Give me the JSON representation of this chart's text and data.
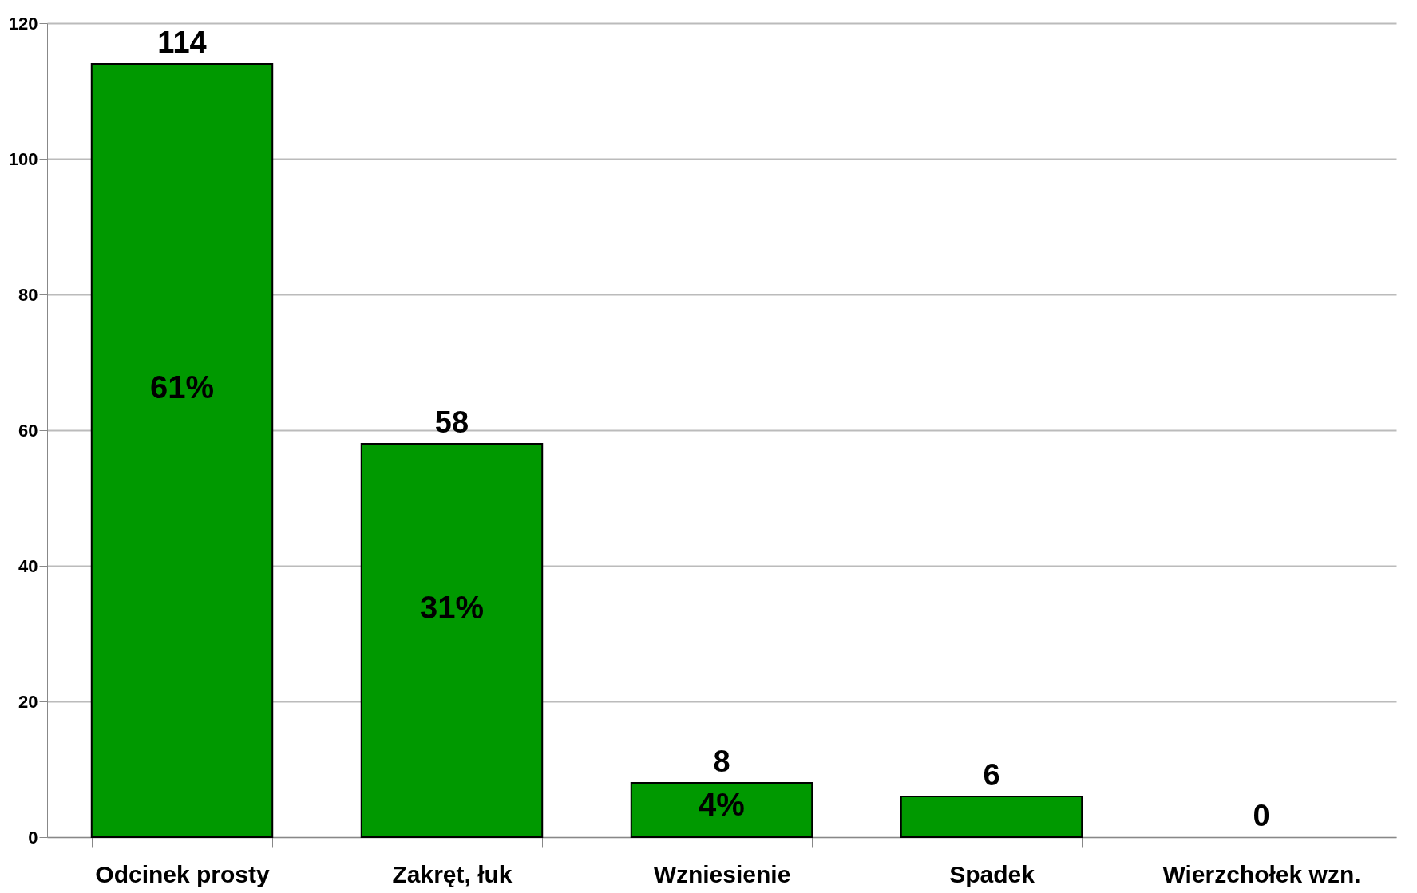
{
  "chart_data": {
    "type": "bar",
    "categories": [
      "Odcinek prosty",
      "Zakręt, łuk",
      "Wzniesienie",
      "Spadek",
      "Wierzchołek wzn."
    ],
    "values": [
      114,
      58,
      8,
      6,
      0
    ],
    "color": "#009900",
    "ylim": [
      0,
      120
    ],
    "yticks": [
      0,
      20,
      40,
      60,
      80,
      100,
      120
    ],
    "grid": "y",
    "data_labels": true,
    "annotations": [
      "61%",
      "31%",
      "4%"
    ]
  }
}
